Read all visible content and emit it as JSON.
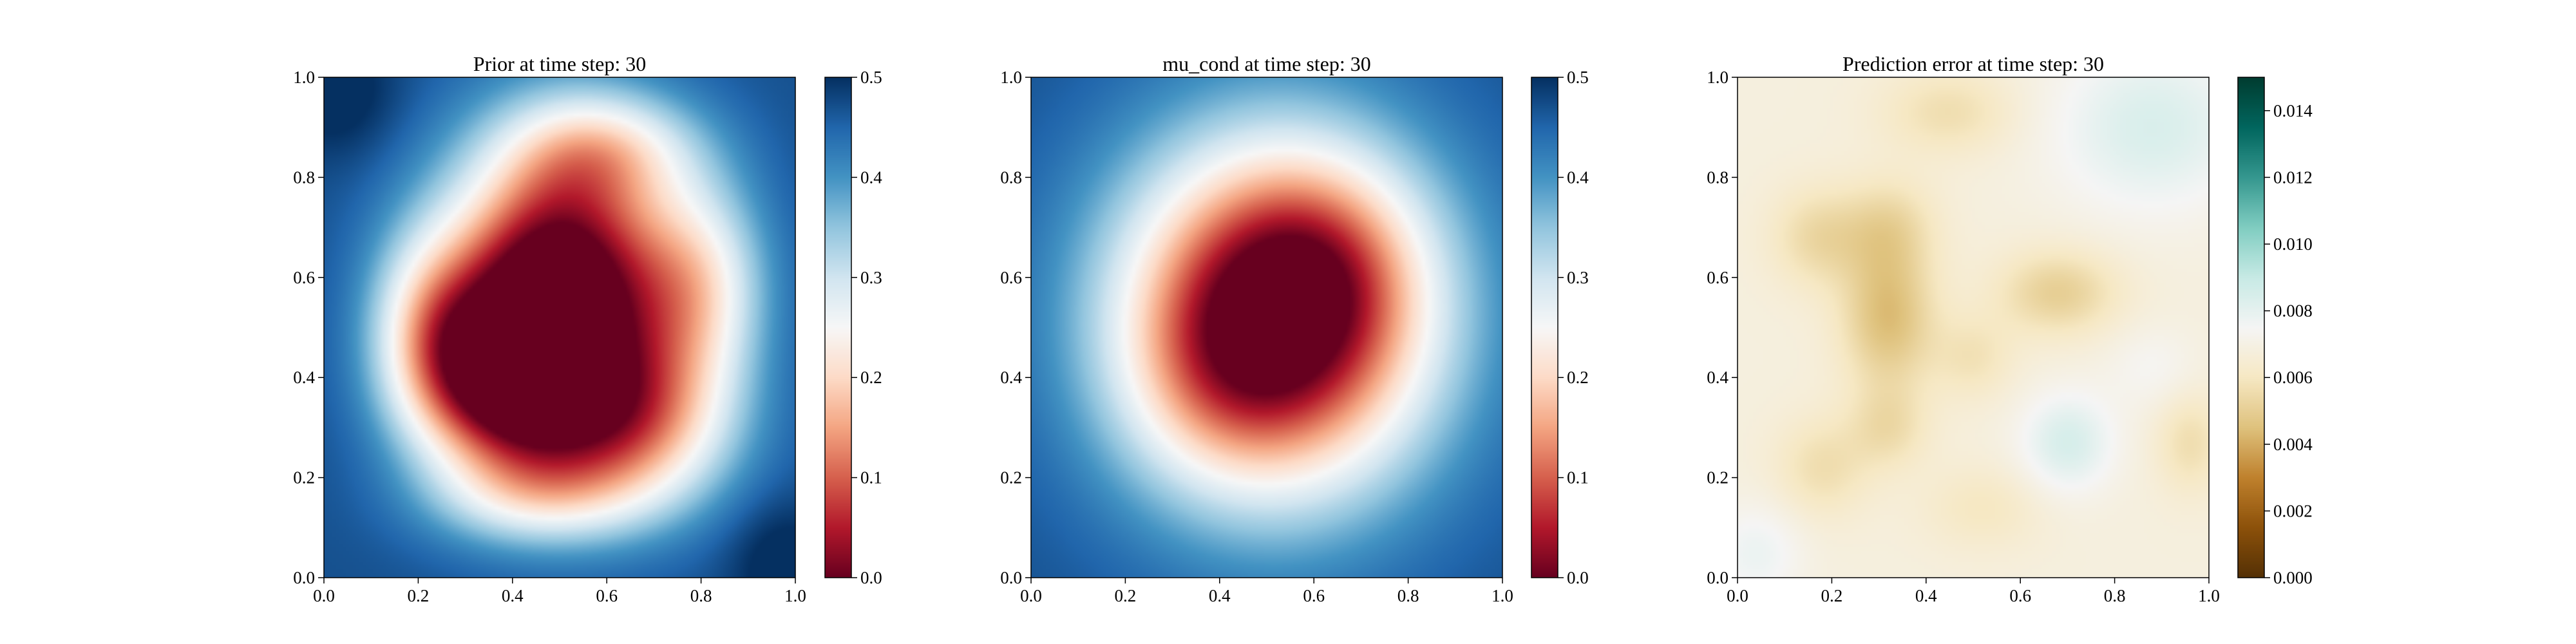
{
  "chart_data": [
    {
      "type": "heatmap",
      "title": "Prior at time step: 30",
      "xlabel": "",
      "ylabel": "",
      "xlim": [
        0.0,
        1.0
      ],
      "ylim": [
        0.0,
        1.0
      ],
      "x_ticks": [
        "0.0",
        "0.2",
        "0.4",
        "0.6",
        "0.8",
        "1.0"
      ],
      "y_ticks": [
        "0.0",
        "0.2",
        "0.4",
        "0.6",
        "0.8",
        "1.0"
      ],
      "colormap": "RdBu",
      "colorbar": {
        "range": [
          0.0,
          0.5
        ],
        "ticks": [
          "0.0",
          "0.1",
          "0.2",
          "0.3",
          "0.4",
          "0.5"
        ]
      },
      "grid": false,
      "field": {
        "background": 0.47,
        "blobs": [
          {
            "x": 0.5,
            "y": 0.57,
            "sx": 0.17,
            "sy": 0.21,
            "amp": -0.55
          },
          {
            "x": 0.37,
            "y": 0.38,
            "sx": 0.13,
            "sy": 0.13,
            "amp": -0.3
          },
          {
            "x": 0.66,
            "y": 0.3,
            "sx": 0.15,
            "sy": 0.12,
            "amp": -0.24
          },
          {
            "x": 0.8,
            "y": 0.58,
            "sx": 0.1,
            "sy": 0.15,
            "amp": -0.18
          },
          {
            "x": 0.22,
            "y": 0.5,
            "sx": 0.09,
            "sy": 0.14,
            "amp": -0.16
          },
          {
            "x": 0.6,
            "y": 0.86,
            "sx": 0.14,
            "sy": 0.08,
            "amp": -0.14
          },
          {
            "x": 0.45,
            "y": 0.16,
            "sx": 0.16,
            "sy": 0.07,
            "amp": -0.12
          },
          {
            "x": 0.03,
            "y": 0.97,
            "sx": 0.09,
            "sy": 0.09,
            "amp": 0.05
          },
          {
            "x": 0.97,
            "y": 0.03,
            "sx": 0.08,
            "sy": 0.09,
            "amp": 0.05
          }
        ]
      }
    },
    {
      "type": "heatmap",
      "title": "mu_cond at time step: 30",
      "xlabel": "",
      "ylabel": "",
      "xlim": [
        0.0,
        1.0
      ],
      "ylim": [
        0.0,
        1.0
      ],
      "x_ticks": [
        "0.0",
        "0.2",
        "0.4",
        "0.6",
        "0.8",
        "1.0"
      ],
      "y_ticks": [
        "0.0",
        "0.2",
        "0.4",
        "0.6",
        "0.8",
        "1.0"
      ],
      "colormap": "RdBu",
      "colorbar": {
        "range": [
          0.0,
          0.5
        ],
        "ticks": [
          "0.0",
          "0.1",
          "0.2",
          "0.3",
          "0.4",
          "0.5"
        ]
      },
      "grid": false,
      "field": {
        "background": 0.47,
        "blobs": [
          {
            "x": 0.52,
            "y": 0.52,
            "sx": 0.24,
            "sy": 0.25,
            "amp": -0.5
          },
          {
            "x": 0.62,
            "y": 0.62,
            "sx": 0.14,
            "sy": 0.14,
            "amp": -0.08
          },
          {
            "x": 0.4,
            "y": 0.4,
            "sx": 0.14,
            "sy": 0.14,
            "amp": -0.06
          }
        ]
      }
    },
    {
      "type": "heatmap",
      "title": "Prediction error at time step: 30",
      "xlabel": "",
      "ylabel": "",
      "xlim": [
        0.0,
        1.0
      ],
      "ylim": [
        0.0,
        1.0
      ],
      "x_ticks": [
        "0.0",
        "0.2",
        "0.4",
        "0.6",
        "0.8",
        "1.0"
      ],
      "y_ticks": [
        "0.0",
        "0.2",
        "0.4",
        "0.6",
        "0.8",
        "1.0"
      ],
      "colormap": "BrBG",
      "colorbar": {
        "range": [
          0.0,
          0.015
        ],
        "ticks": [
          "0.000",
          "0.002",
          "0.004",
          "0.006",
          "0.008",
          "0.010",
          "0.012",
          "0.014"
        ]
      },
      "grid": false,
      "field": {
        "background": 0.0068,
        "blobs": [
          {
            "x": 0.32,
            "y": 0.52,
            "sx": 0.07,
            "sy": 0.1,
            "amp": -0.0024
          },
          {
            "x": 0.32,
            "y": 0.7,
            "sx": 0.07,
            "sy": 0.07,
            "amp": -0.0014
          },
          {
            "x": 0.17,
            "y": 0.68,
            "sx": 0.07,
            "sy": 0.07,
            "amp": -0.0014
          },
          {
            "x": 0.68,
            "y": 0.57,
            "sx": 0.09,
            "sy": 0.06,
            "amp": -0.0018
          },
          {
            "x": 0.5,
            "y": 0.44,
            "sx": 0.06,
            "sy": 0.06,
            "amp": -0.001
          },
          {
            "x": 0.32,
            "y": 0.3,
            "sx": 0.06,
            "sy": 0.06,
            "amp": -0.0012
          },
          {
            "x": 0.18,
            "y": 0.22,
            "sx": 0.07,
            "sy": 0.07,
            "amp": -0.0012
          },
          {
            "x": 0.45,
            "y": 0.93,
            "sx": 0.1,
            "sy": 0.06,
            "amp": -0.0012
          },
          {
            "x": 0.96,
            "y": 0.27,
            "sx": 0.05,
            "sy": 0.07,
            "amp": -0.0012
          },
          {
            "x": 0.52,
            "y": 0.14,
            "sx": 0.09,
            "sy": 0.06,
            "amp": -0.0008
          },
          {
            "x": 0.88,
            "y": 0.9,
            "sx": 0.15,
            "sy": 0.12,
            "amp": 0.0016
          },
          {
            "x": 0.7,
            "y": 0.27,
            "sx": 0.07,
            "sy": 0.07,
            "amp": 0.0017
          },
          {
            "x": 0.04,
            "y": 0.05,
            "sx": 0.07,
            "sy": 0.07,
            "amp": 0.001
          },
          {
            "x": 0.88,
            "y": 0.42,
            "sx": 0.07,
            "sy": 0.06,
            "amp": 0.0006
          }
        ]
      }
    }
  ]
}
